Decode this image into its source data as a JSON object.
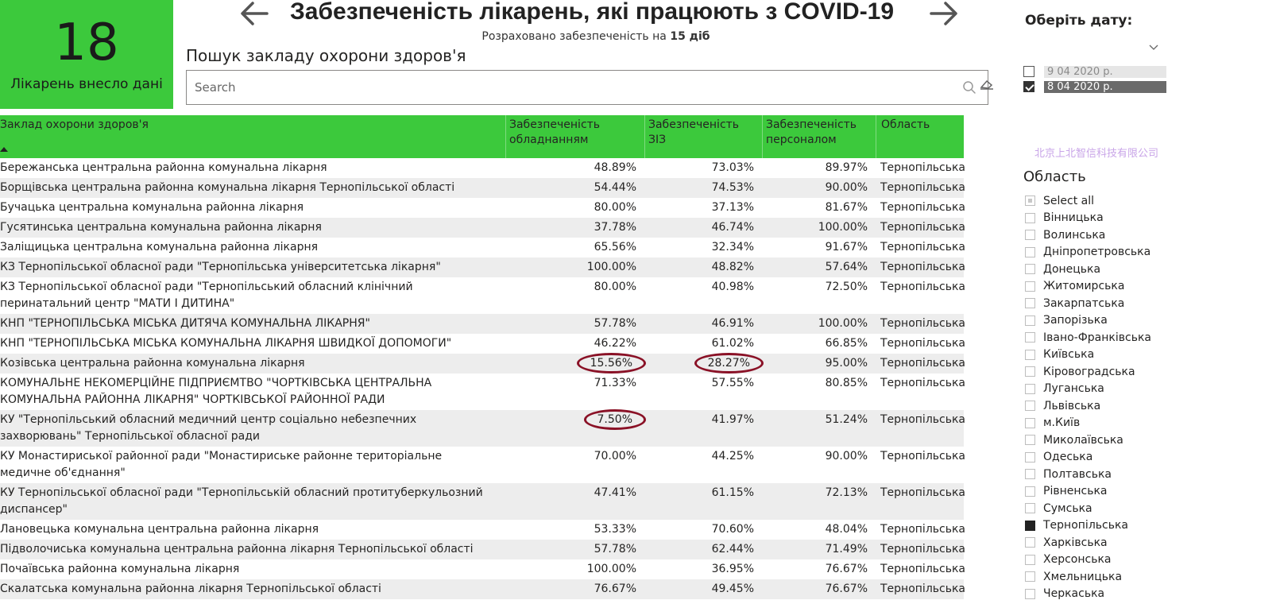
{
  "kpi": {
    "value": "18",
    "label": "Лікарень внесло дані"
  },
  "header": {
    "title": "Забезпеченість лікарень, які працюють з COVID-19",
    "subtitle_prefix": "Розраховано забезпеченість на ",
    "subtitle_bold": "15 діб",
    "prev_icon": "arrow-left-icon",
    "next_icon": "arrow-right-icon"
  },
  "search": {
    "title": "Пошук закладу охорони здоров'я",
    "placeholder": "Search",
    "value": "",
    "icon": "search-icon",
    "clear_icon": "eraser-icon"
  },
  "table": {
    "columns": [
      "Заклад охорони здоров'я",
      "Забезпеченість обладнанням",
      "Забезпеченість ЗІЗ",
      "Забезпеченість персоналом",
      "Область"
    ],
    "rows": [
      [
        "Бережанська центральна районна комунальна лікарня",
        "48.89%",
        "73.03%",
        "89.97%",
        "Тернопільська"
      ],
      [
        "Борщівська центральна районна комунальна лікарня Тернопільської області",
        "54.44%",
        "74.53%",
        "90.00%",
        "Тернопільська"
      ],
      [
        "Бучацька центральна комунальна районна лікарня",
        "80.00%",
        "37.13%",
        "81.67%",
        "Тернопільська"
      ],
      [
        "Гусятинська центральна комунальна районна лікарня",
        "37.78%",
        "46.74%",
        "100.00%",
        "Тернопільська"
      ],
      [
        "Заліщицька центральна комунальна районна лікарня",
        "65.56%",
        "32.34%",
        "91.67%",
        "Тернопільська"
      ],
      [
        "КЗ Тернопільської обласної ради \"Тернопільська університетська лікарня\"",
        "100.00%",
        "48.82%",
        "57.64%",
        "Тернопільська"
      ],
      [
        "КЗ Тернопільської обласної ради \"Тернопільський обласний клінічний перинатальний центр \"МАТИ І ДИТИНА\"",
        "80.00%",
        "40.98%",
        "72.50%",
        "Тернопільська"
      ],
      [
        "КНП \"ТЕРНОПІЛЬСЬКА МІСЬКА ДИТЯЧА КОМУНАЛЬНА ЛІКАРНЯ\"",
        "57.78%",
        "46.91%",
        "100.00%",
        "Тернопільська"
      ],
      [
        "КНП \"ТЕРНОПІЛЬСЬКА МІСЬКА КОМУНАЛЬНА ЛІКАРНЯ ШВИДКОЇ ДОПОМОГИ\"",
        "46.22%",
        "61.02%",
        "66.85%",
        "Тернопільська"
      ],
      [
        "Козівська центральна районна комунальна лікарня",
        "15.56%",
        "28.27%",
        "95.00%",
        "Тернопільська"
      ],
      [
        "КОМУНАЛЬНЕ НЕКОМЕРЦІЙНЕ ПІДПРИЄМТВО \"ЧОРТКІВСЬКА ЦЕНТРАЛЬНА КОМУНАЛЬНА РАЙОННА ЛІКАРНЯ\" ЧОРТКІВСЬКОЇ РАЙОННОЇ РАДИ",
        "71.33%",
        "57.55%",
        "80.85%",
        "Тернопільська"
      ],
      [
        "КУ \"Тернопільський обласний медичний центр соціально небезпечних захворювань\" Тернопільської обласної ради",
        "7.50%",
        "41.97%",
        "51.24%",
        "Тернопільська"
      ],
      [
        "КУ Монастириської районної ради \"Монастириське районне територіальне медичне об'єднання\"",
        "70.00%",
        "44.25%",
        "90.00%",
        "Тернопільська"
      ],
      [
        "КУ Тернопільської обласної ради \"Тернопільській обласний протитуберкульозний диспансер\"",
        "47.41%",
        "61.15%",
        "72.13%",
        "Тернопільська"
      ],
      [
        "Лановецька комунальна центральна районна лікарня",
        "53.33%",
        "70.60%",
        "48.04%",
        "Тернопільська"
      ],
      [
        "Підволочиська комунальна центральна районна лікарня Тернопільської області",
        "57.78%",
        "62.44%",
        "71.49%",
        "Тернопільська"
      ],
      [
        "Почаївська районна комунальна лікарня",
        "100.00%",
        "36.95%",
        "76.67%",
        "Тернопільська"
      ],
      [
        "Скалатська комунальна районна лікарня Тернопільської області",
        "76.67%",
        "49.45%",
        "76.67%",
        "Тернопільська"
      ]
    ],
    "highlighted": [
      [
        9,
        1
      ],
      [
        9,
        2
      ],
      [
        11,
        1
      ]
    ]
  },
  "date_filter": {
    "title": "Оберіть дату:",
    "dropdown_icon": "chevron-down-icon",
    "options": [
      {
        "label": "9 04 2020 р.",
        "checked": false
      },
      {
        "label": "8 04 2020 р.",
        "checked": true
      }
    ]
  },
  "watermark": "北京上北智信科技有限公司",
  "region_filter": {
    "title": "Область",
    "items": [
      {
        "label": "Select all",
        "state": "partial"
      },
      {
        "label": "Вінницька",
        "state": "off"
      },
      {
        "label": "Волинська",
        "state": "off"
      },
      {
        "label": "Дніпропетровська",
        "state": "off"
      },
      {
        "label": "Донецька",
        "state": "off"
      },
      {
        "label": "Житомирська",
        "state": "off"
      },
      {
        "label": "Закарпатська",
        "state": "off"
      },
      {
        "label": "Запорізька",
        "state": "off"
      },
      {
        "label": "Івано-Франківська",
        "state": "off"
      },
      {
        "label": "Київська",
        "state": "off"
      },
      {
        "label": "Кіровоградська",
        "state": "off"
      },
      {
        "label": "Луганська",
        "state": "off"
      },
      {
        "label": "Львівська",
        "state": "off"
      },
      {
        "label": "м.Київ",
        "state": "off"
      },
      {
        "label": "Миколаївська",
        "state": "off"
      },
      {
        "label": "Одеська",
        "state": "off"
      },
      {
        "label": "Полтавська",
        "state": "off"
      },
      {
        "label": "Рівненська",
        "state": "off"
      },
      {
        "label": "Сумська",
        "state": "off"
      },
      {
        "label": "Тернопільська",
        "state": "selected"
      },
      {
        "label": "Харківська",
        "state": "off"
      },
      {
        "label": "Херсонська",
        "state": "off"
      },
      {
        "label": "Хмельницька",
        "state": "off"
      },
      {
        "label": "Черкаська",
        "state": "off"
      }
    ]
  },
  "colors": {
    "accent_green": "#3cc93c",
    "highlight_ring": "#8a1126",
    "row_alt": "#ededed"
  }
}
